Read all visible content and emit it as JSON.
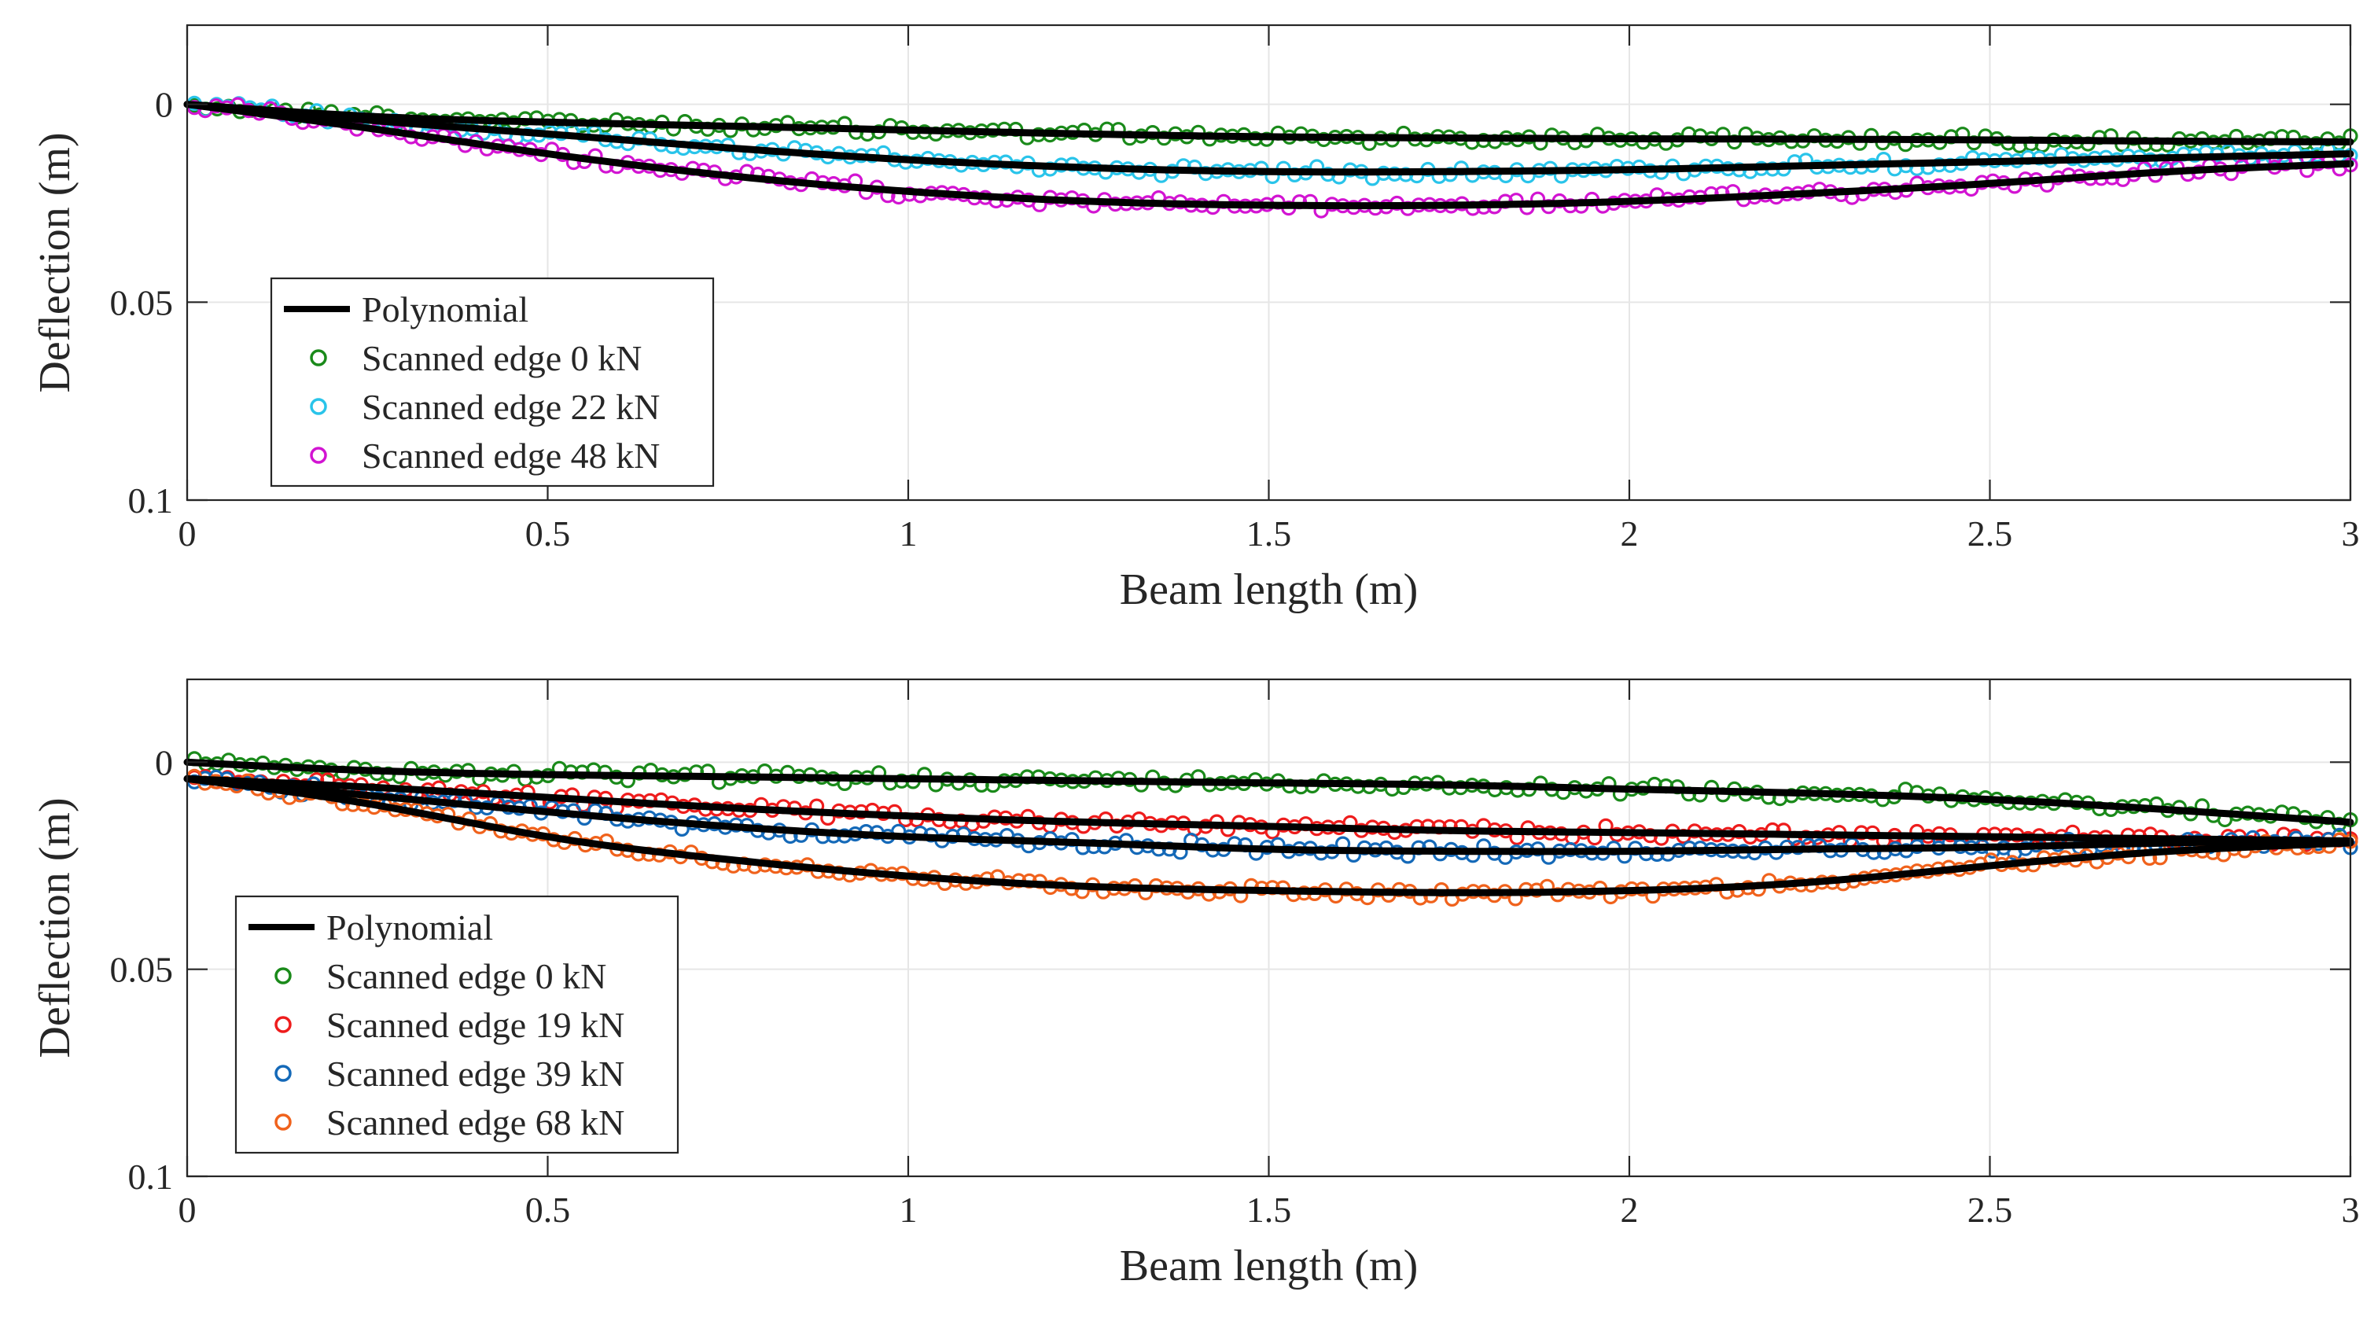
{
  "chart_data": [
    {
      "type": "scatter",
      "title": "",
      "xlabel": "Beam length (m)",
      "ylabel": "Deflection (m)",
      "xlim": [
        0,
        3
      ],
      "ylim": [
        0.1,
        -0.02
      ],
      "y_reversed": true,
      "xticks": [
        0,
        0.5,
        1,
        1.5,
        2,
        2.5,
        3
      ],
      "xtick_labels": [
        "0",
        "0.5",
        "1",
        "1.5",
        "2",
        "2.5",
        "3"
      ],
      "yticks": [
        0,
        0.05,
        0.1
      ],
      "ytick_labels": [
        "0",
        "0.05",
        "0.1"
      ],
      "grid": true,
      "legend_position": "bottom-left",
      "fit_label": "Polynomial",
      "fit_color": "#000000",
      "series": [
        {
          "name": "Scanned edge 0 kN",
          "color": "#1a8a1a",
          "x": [
            0,
            0.25,
            0.5,
            0.75,
            1,
            1.25,
            1.5,
            1.75,
            2,
            2.25,
            2.5,
            2.75,
            3
          ],
          "values": [
            0,
            0.003,
            0.0045,
            0.0055,
            0.0065,
            0.0075,
            0.0082,
            0.0085,
            0.0087,
            0.0088,
            0.009,
            0.0093,
            0.0095
          ]
        },
        {
          "name": "Scanned edge 22 kN",
          "color": "#29c4ea",
          "x": [
            0,
            0.25,
            0.5,
            0.75,
            1,
            1.25,
            1.5,
            1.75,
            2,
            2.25,
            2.5,
            2.75,
            3
          ],
          "values": [
            0,
            0.004,
            0.0075,
            0.011,
            0.014,
            0.016,
            0.017,
            0.017,
            0.0165,
            0.0155,
            0.0145,
            0.0135,
            0.0125
          ]
        },
        {
          "name": "Scanned edge 48 kN",
          "color": "#d214d2",
          "x": [
            0,
            0.25,
            0.5,
            0.75,
            1,
            1.25,
            1.5,
            1.75,
            2,
            2.25,
            2.5,
            2.75,
            3
          ],
          "values": [
            0,
            0.006,
            0.0125,
            0.018,
            0.022,
            0.0245,
            0.0255,
            0.0255,
            0.0245,
            0.0225,
            0.02,
            0.017,
            0.015
          ]
        }
      ]
    },
    {
      "type": "scatter",
      "title": "",
      "xlabel": "Beam length (m)",
      "ylabel": "Deflection (m)",
      "xlim": [
        0,
        3
      ],
      "ylim": [
        0.1,
        -0.02
      ],
      "y_reversed": true,
      "xticks": [
        0,
        0.5,
        1,
        1.5,
        2,
        2.5,
        3
      ],
      "xtick_labels": [
        "0",
        "0.5",
        "1",
        "1.5",
        "2",
        "2.5",
        "3"
      ],
      "yticks": [
        0,
        0.05,
        0.1
      ],
      "ytick_labels": [
        "0",
        "0.05",
        "0.1"
      ],
      "grid": true,
      "legend_position": "bottom-left",
      "fit_label": "Polynomial",
      "fit_color": "#000000",
      "series": [
        {
          "name": "Scanned edge 0 kN",
          "color": "#1a8a1a",
          "x": [
            0,
            0.25,
            0.5,
            0.75,
            1,
            1.25,
            1.5,
            1.75,
            2,
            2.25,
            2.5,
            2.75,
            3
          ],
          "values": [
            0,
            0.002,
            0.003,
            0.0035,
            0.004,
            0.0045,
            0.005,
            0.0055,
            0.0065,
            0.0075,
            0.009,
            0.0115,
            0.0145
          ]
        },
        {
          "name": "Scanned edge 19 kN",
          "color": "#ee1c1c",
          "x": [
            0,
            0.25,
            0.5,
            0.75,
            1,
            1.25,
            1.5,
            1.75,
            2,
            2.25,
            2.5,
            2.75,
            3
          ],
          "values": [
            0.004,
            0.006,
            0.0085,
            0.011,
            0.013,
            0.0145,
            0.0155,
            0.0165,
            0.017,
            0.0175,
            0.018,
            0.0185,
            0.019
          ]
        },
        {
          "name": "Scanned edge 39 kN",
          "color": "#1469b8",
          "x": [
            0,
            0.25,
            0.5,
            0.75,
            1,
            1.25,
            1.5,
            1.75,
            2,
            2.25,
            2.5,
            2.75,
            3
          ],
          "values": [
            0.004,
            0.008,
            0.012,
            0.0155,
            0.018,
            0.0195,
            0.021,
            0.0215,
            0.0215,
            0.021,
            0.0205,
            0.0195,
            0.019
          ]
        },
        {
          "name": "Scanned edge 68 kN",
          "color": "#f0621c",
          "x": [
            0,
            0.25,
            0.5,
            0.75,
            1,
            1.25,
            1.5,
            1.75,
            2,
            2.25,
            2.5,
            2.75,
            3
          ],
          "values": [
            0.004,
            0.01,
            0.018,
            0.0235,
            0.0275,
            0.03,
            0.031,
            0.0315,
            0.031,
            0.029,
            0.025,
            0.0215,
            0.0195
          ]
        }
      ]
    }
  ]
}
